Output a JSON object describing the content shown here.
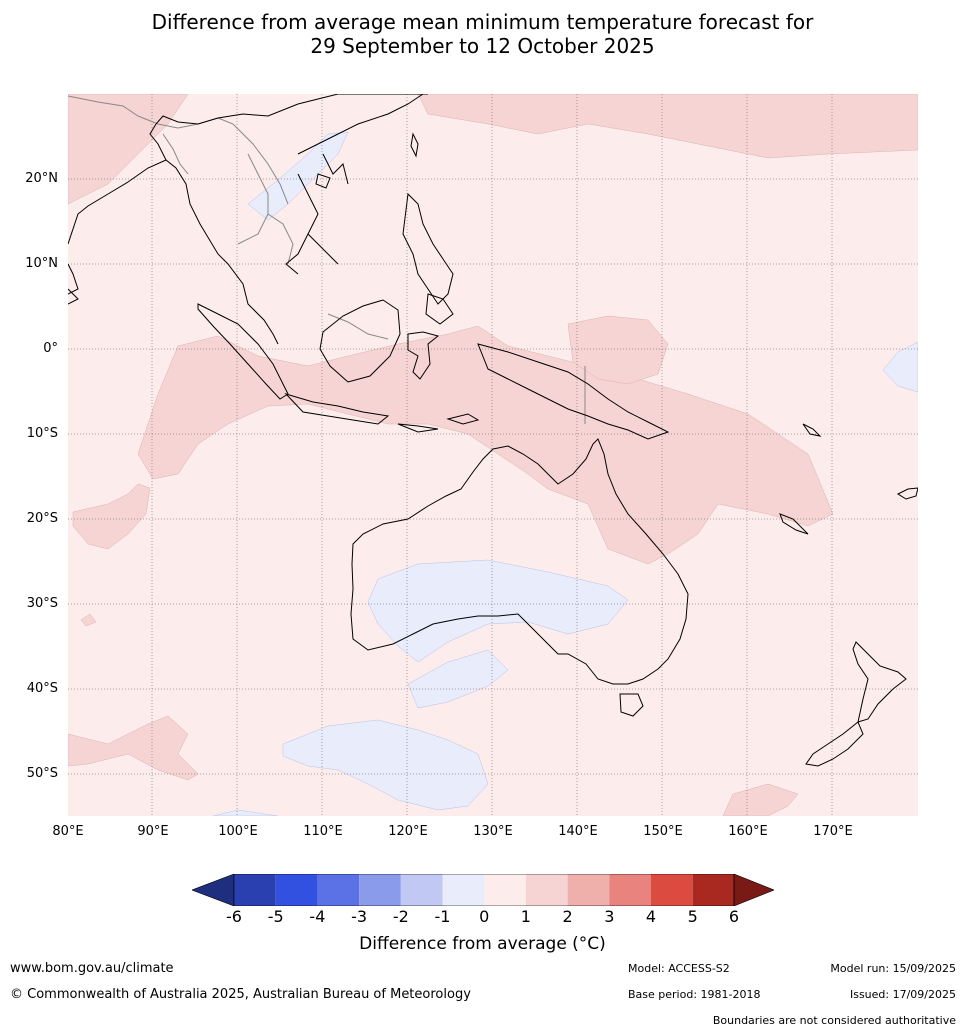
{
  "title_line1": "Difference from average mean minimum temperature forecast for",
  "title_line2": "29 September to 12 October 2025",
  "lat_labels": [
    "20°N",
    "10°N",
    "0°",
    "10°S",
    "20°S",
    "30°S",
    "40°S",
    "50°S"
  ],
  "lon_labels": [
    "80°E",
    "90°E",
    "100°E",
    "110°E",
    "120°E",
    "130°E",
    "140°E",
    "150°E",
    "160°E",
    "170°E"
  ],
  "legend": {
    "ticks": [
      "-6",
      "-5",
      "-4",
      "-3",
      "-2",
      "-1",
      "0",
      "1",
      "2",
      "3",
      "4",
      "5",
      "6"
    ],
    "colors": [
      "#1f2f7f",
      "#2a3fb0",
      "#3351e0",
      "#5b72e6",
      "#8a9bec",
      "#c0c8f3",
      "#e8ecfb",
      "#fceceb",
      "#f5d4d3",
      "#efb0ab",
      "#e8847d",
      "#dc4b40",
      "#a9281f",
      "#7a1a16"
    ],
    "label": "Difference from average ($^\\circ$C)",
    "label_display": "Difference from average (°C)"
  },
  "colors": {
    "warm_light": "#fceceb",
    "warm_mid": "#f5d4d3",
    "cool_light": "#e8ecfb",
    "coast": "#000000",
    "border": "#888888",
    "grid": "#555555"
  },
  "footer": {
    "website": "www.bom.gov.au/climate",
    "copyright": "© Commonwealth of Australia 2025, Australian Bureau of Meteorology",
    "model": "Model: ACCESS-S2",
    "base_period": "Base period: 1981-2018",
    "model_run": "Model run: 15/09/2025",
    "issued": "Issued: 17/09/2025",
    "disclaimer": "Boundaries are not considered authoritative"
  }
}
